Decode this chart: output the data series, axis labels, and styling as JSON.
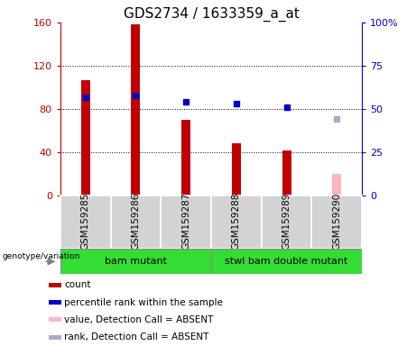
{
  "title": "GDS2734 / 1633359_a_at",
  "samples": [
    "GSM159285",
    "GSM159286",
    "GSM159287",
    "GSM159288",
    "GSM159289",
    "GSM159290"
  ],
  "count_values": [
    107,
    158,
    70,
    48,
    42,
    null
  ],
  "count_absent": [
    null,
    null,
    null,
    null,
    null,
    20
  ],
  "percentile_values": [
    57,
    58,
    54,
    53,
    51,
    null
  ],
  "percentile_absent": [
    null,
    null,
    null,
    null,
    null,
    44
  ],
  "groups": [
    {
      "label": "bam mutant",
      "samples": [
        0,
        1,
        2
      ]
    },
    {
      "label": "stwl bam double mutant",
      "samples": [
        3,
        4,
        5
      ]
    }
  ],
  "left_ylim": [
    0,
    160
  ],
  "right_ylim": [
    0,
    100
  ],
  "left_yticks": [
    0,
    40,
    80,
    120,
    160
  ],
  "right_yticks": [
    0,
    25,
    50,
    75,
    100
  ],
  "right_yticklabels": [
    "0",
    "25",
    "50",
    "75",
    "100%"
  ],
  "bar_color": "#c00000",
  "bar_absent_color": "#ffb6c1",
  "dot_color": "#0000cc",
  "dot_absent_color": "#aaaacc",
  "bg_color": "#ffffff",
  "sample_bg_color": "#d3d3d3",
  "group_color": "#33dd33",
  "legend_items": [
    {
      "label": "count",
      "color": "#c00000"
    },
    {
      "label": "percentile rank within the sample",
      "color": "#0000cc"
    },
    {
      "label": "value, Detection Call = ABSENT",
      "color": "#ffb6c1"
    },
    {
      "label": "rank, Detection Call = ABSENT",
      "color": "#aaaacc"
    }
  ],
  "bar_width": 0.18
}
